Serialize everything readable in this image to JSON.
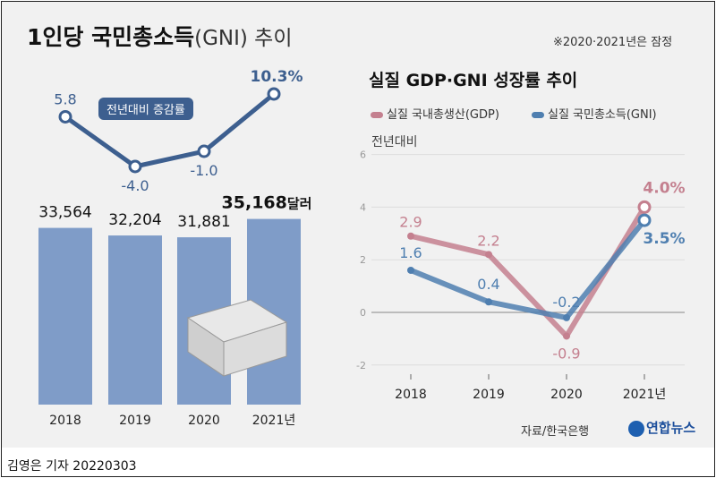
{
  "note": "※2020·2021년은 잠정",
  "byline": "김영은 기자  20220303",
  "source": "자료/한국은행",
  "logo": "연합뉴스",
  "chart_data": [
    {
      "type": "bar",
      "title_main": "1인당 국민총소득",
      "title_paren": "(GNI) 추이",
      "categories": [
        "2018",
        "2019",
        "2020",
        "2021년"
      ],
      "values": [
        33564,
        32204,
        31881,
        35168
      ],
      "value_labels": [
        "33,564",
        "32,204",
        "31,881",
        "35,168"
      ],
      "unit": "달러",
      "bar_color": "#7f9cc8",
      "line_series": {
        "name": "전년대비 증감률",
        "values": [
          5.8,
          -4.0,
          -1.0,
          10.3
        ],
        "labels": [
          "5.8",
          "-4.0",
          "-1.0",
          "10.3%"
        ],
        "color": "#3d5f8f"
      }
    },
    {
      "type": "line",
      "title": "실질 GDP·GNI 성장률 추이",
      "ylabel": "전년대비",
      "categories": [
        "2018",
        "2019",
        "2020",
        "2021년"
      ],
      "ylim": [
        -2,
        6
      ],
      "yticks": [
        "6",
        "4",
        "2",
        "0",
        "-2"
      ],
      "grid": true,
      "legend": "top",
      "series": [
        {
          "name": "실질 국내총생산(GDP)",
          "values": [
            2.9,
            2.2,
            -0.9,
            4.0
          ],
          "labels": [
            "2.9",
            "2.2",
            "-0.9",
            "4.0%"
          ],
          "color": "#c4808f"
        },
        {
          "name": "실질 국민총소득(GNI)",
          "values": [
            1.6,
            0.4,
            -0.2,
            3.5
          ],
          "labels": [
            "1.6",
            "0.4",
            "-0.2",
            "3.5%"
          ],
          "color": "#4f7fb0"
        }
      ]
    }
  ]
}
